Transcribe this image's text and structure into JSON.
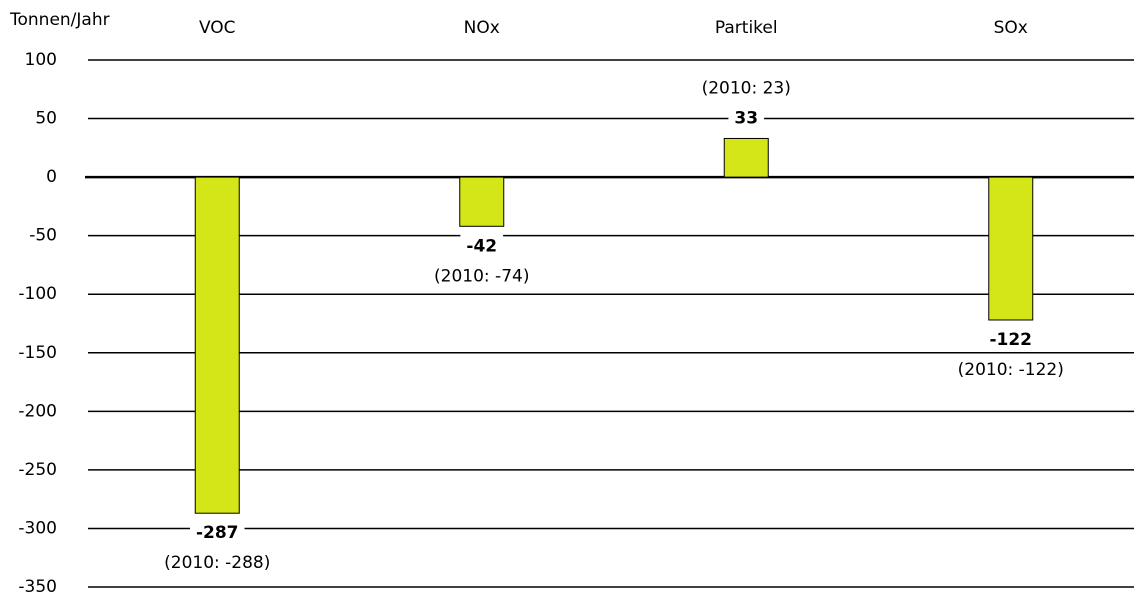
{
  "chart_data": {
    "type": "bar",
    "y_axis_label": "Tonnen/Jahr",
    "categories": [
      "VOC",
      "NOx",
      "Partikel",
      "SOx"
    ],
    "values": [
      -287,
      -42,
      33,
      -122
    ],
    "annotations": [
      "(2010: -288)",
      "(2010: -74)",
      "(2010: 23)",
      "(2010: -122)"
    ],
    "color": "#d4e617",
    "ylim": [
      -350,
      100
    ],
    "yticks": [
      -350,
      -300,
      -250,
      -200,
      -150,
      -100,
      -50,
      0,
      50,
      100
    ],
    "grid": true
  }
}
